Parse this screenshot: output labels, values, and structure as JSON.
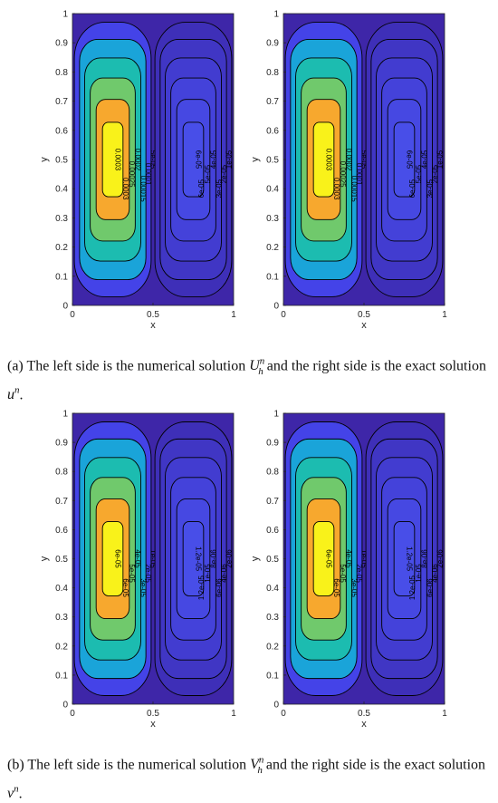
{
  "chart_data": [
    {
      "type": "contour",
      "panel": "top-left",
      "xlabel": "x",
      "ylabel": "y",
      "xlim": [
        0,
        1
      ],
      "ylim": [
        0,
        1
      ],
      "x_ticks": [
        "0",
        "0.5",
        "1"
      ],
      "y_ticks": [
        "0",
        "0.1",
        "0.2",
        "0.3",
        "0.4",
        "0.5",
        "0.6",
        "0.7",
        "0.8",
        "0.9",
        "1"
      ],
      "left_cell_levels": [
        5e-05,
        0.0001,
        0.00015,
        0.0002,
        0.00025,
        0.0003
      ],
      "right_cell_levels": [
        1e-05,
        2e-05,
        3e-05,
        4e-05,
        5e-05,
        6e-05
      ],
      "contour_labels": [
        "0.0003",
        "0.00025",
        "0.0002",
        "0.00015",
        "0.0001",
        "5e-05",
        "3e-05",
        "1e-05",
        "2e-05",
        "4e-05",
        "6e-05",
        "0.00025",
        "0.0002",
        "0.00015",
        "0.0001",
        "5e-05",
        "2e-05",
        "3e-05"
      ],
      "peak_left": {
        "x": 0.25,
        "y": 0.5,
        "value": 0.0003
      },
      "peak_right": {
        "x": 0.75,
        "y": 0.5,
        "value": 6e-05
      }
    },
    {
      "type": "contour",
      "panel": "top-right",
      "xlabel": "x",
      "ylabel": "y",
      "xlim": [
        0,
        1
      ],
      "ylim": [
        0,
        1
      ],
      "x_ticks": [
        "0",
        "0.5",
        "1"
      ],
      "y_ticks": [
        "0",
        "0.1",
        "0.2",
        "0.3",
        "0.4",
        "0.5",
        "0.6",
        "0.7",
        "0.8",
        "0.9",
        "1"
      ],
      "left_cell_levels": [
        5e-05,
        0.0001,
        0.00015,
        0.0002,
        0.00025,
        0.0003
      ],
      "right_cell_levels": [
        1e-05,
        2e-05,
        3e-05,
        4e-05,
        5e-05,
        6e-05
      ],
      "contour_labels": [
        "0.0003",
        "0.00025",
        "0.0002",
        "0.00015",
        "0.0001",
        "5e-05",
        "3e-05",
        "1e-05",
        "2e-05",
        "4e-05",
        "6e-05",
        "0.00025",
        "0.0002",
        "0.00015",
        "0.0001",
        "5e-05",
        "2e-05",
        "3e-05"
      ],
      "peak_left": {
        "x": 0.25,
        "y": 0.5,
        "value": 0.0003
      },
      "peak_right": {
        "x": 0.75,
        "y": 0.5,
        "value": 6e-05
      }
    },
    {
      "type": "contour",
      "panel": "bottom-left",
      "xlabel": "x",
      "ylabel": "y",
      "xlim": [
        0,
        1
      ],
      "ylim": [
        0,
        1
      ],
      "x_ticks": [
        "0",
        "0.5",
        "1"
      ],
      "y_ticks": [
        "0",
        "0.1",
        "0.2",
        "0.3",
        "0.4",
        "0.5",
        "0.6",
        "0.7",
        "0.8",
        "0.9",
        "1"
      ],
      "left_cell_levels": [
        1e-05,
        2e-05,
        3e-05,
        4e-05,
        5e-05,
        6e-05
      ],
      "right_cell_levels": [
        2e-06,
        4e-06,
        6e-06,
        8e-06,
        1e-05,
        1.2e-05
      ],
      "contour_labels": [
        "6e-05",
        "5e-05",
        "4e-05",
        "3e-05",
        "2e-05",
        "1e-05",
        "1e-05",
        "2e-05",
        "3e-05",
        "4e-05",
        "5e-05",
        "1.2e-05",
        "1e-05",
        "8e-06",
        "6e-06",
        "4e-06",
        "2e-06",
        "1e-05",
        "8e-06",
        "6e-06",
        "4e-06",
        "2e-06"
      ],
      "peak_left": {
        "x": 0.25,
        "y": 0.5,
        "value": 6e-05
      },
      "peak_right": {
        "x": 0.75,
        "y": 0.5,
        "value": 1.2e-05
      }
    },
    {
      "type": "contour",
      "panel": "bottom-right",
      "xlabel": "x",
      "ylabel": "y",
      "xlim": [
        0,
        1
      ],
      "ylim": [
        0,
        1
      ],
      "x_ticks": [
        "0",
        "0.5",
        "1"
      ],
      "y_ticks": [
        "0",
        "0.1",
        "0.2",
        "0.3",
        "0.4",
        "0.5",
        "0.6",
        "0.7",
        "0.8",
        "0.9",
        "1"
      ],
      "left_cell_levels": [
        1e-05,
        2e-05,
        3e-05,
        4e-05,
        5e-05,
        6e-05
      ],
      "right_cell_levels": [
        2e-06,
        4e-06,
        6e-06,
        8e-06,
        1e-05,
        1.2e-05
      ],
      "contour_labels": [
        "6e-05",
        "5e-05",
        "4e-05",
        "3e-05",
        "2e-05",
        "1e-05",
        "1e-05",
        "2e-05",
        "3e-05",
        "4e-05",
        "5e-05",
        "1.2e-05",
        "1e-05",
        "8e-06",
        "6e-06",
        "4e-06",
        "2e-06",
        "1e-05",
        "8e-06",
        "6e-06",
        "4e-06",
        "2e-06"
      ],
      "peak_left": {
        "x": 0.25,
        "y": 0.5,
        "value": 6e-05
      },
      "peak_right": {
        "x": 0.75,
        "y": 0.5,
        "value": 1.2e-05
      }
    }
  ],
  "captions": {
    "a": {
      "tag": "(a)",
      "text1": " The left side is the numerical solution ",
      "sym1": "U",
      "sym1_sup": "n",
      "sym1_sub": "h",
      "text2": " and the right side is the exact solution ",
      "sym2": "u",
      "sym2_sup": "n",
      "end": "."
    },
    "b": {
      "tag": "(b)",
      "text1": " The left side is the numerical solution ",
      "sym1": "V",
      "sym1_sup": "n",
      "sym1_sub": "h",
      "text2": " and the right side is the exact solution ",
      "sym2": "v",
      "sym2_sup": "n",
      "end": "."
    }
  },
  "colormap": [
    "#3e26a8",
    "#4443e8",
    "#2f6bf7",
    "#1aa4d9",
    "#1cbcb0",
    "#70c96c",
    "#d3b93a",
    "#f7a82e",
    "#f9f21a"
  ]
}
